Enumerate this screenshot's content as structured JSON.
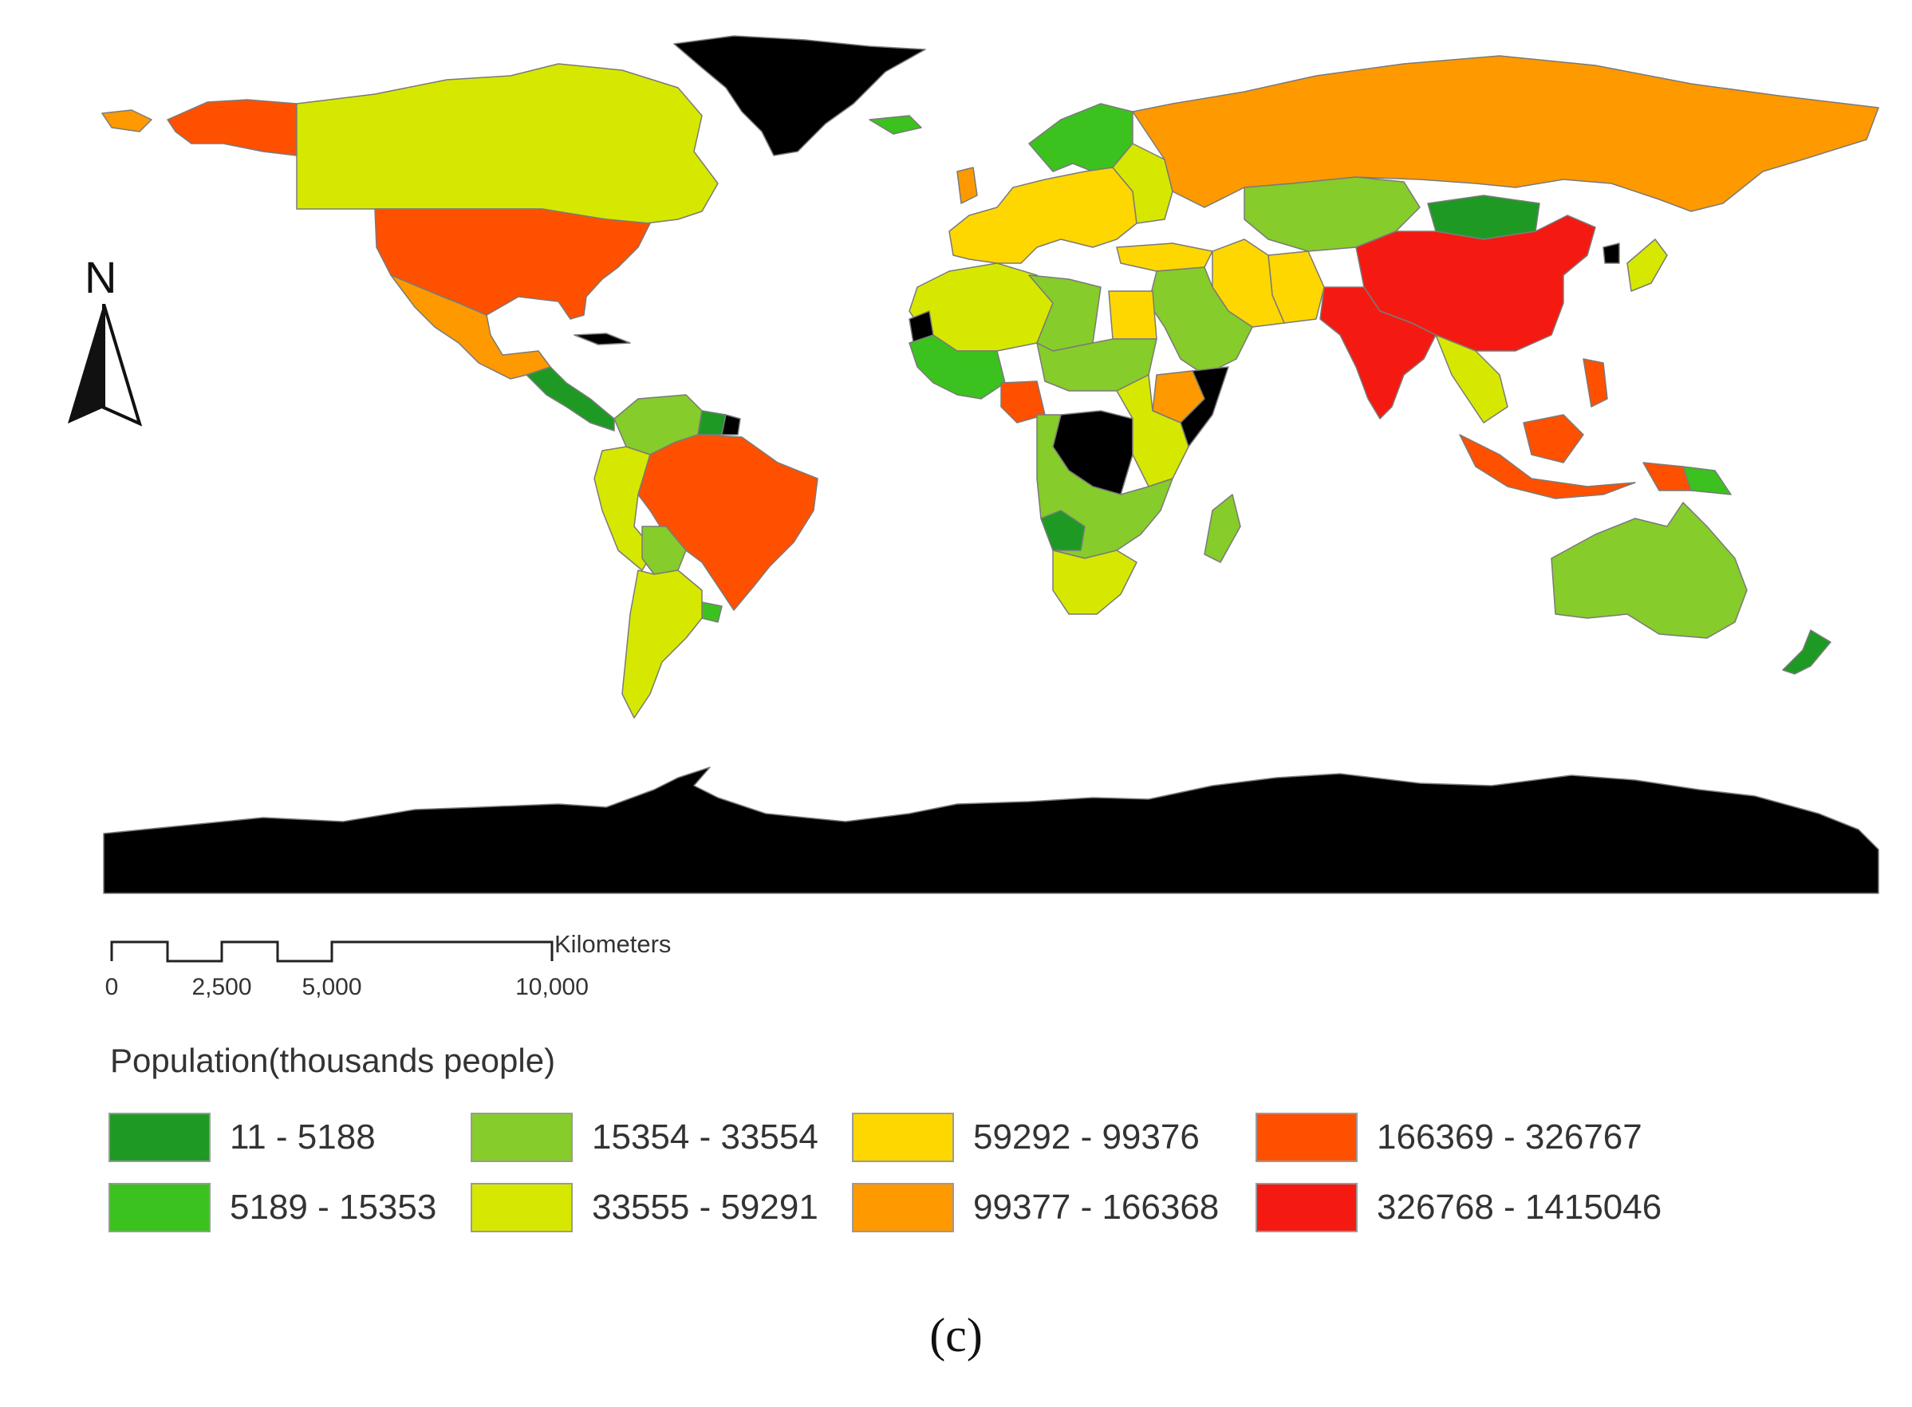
{
  "map": {
    "north_label": "N",
    "colors": {
      "ocean": "#ffffff",
      "no_data": "#000000",
      "class1": "#1e9a24",
      "class2": "#3bc21e",
      "class3": "#86cc2a",
      "class4": "#d6e800",
      "class5": "#ffd700",
      "class6": "#ff9900",
      "class7": "#ff5000",
      "class8": "#f41a12"
    }
  },
  "scale_bar": {
    "unit": "Kilometers",
    "ticks": [
      "0",
      "2,500",
      "5,000",
      "10,000"
    ]
  },
  "legend": {
    "title": "Population(thousands people)",
    "items": [
      {
        "label": "11 - 5188",
        "color": "#1e9a24"
      },
      {
        "label": "5189 - 15353",
        "color": "#3bc21e"
      },
      {
        "label": "15354 - 33554",
        "color": "#86cc2a"
      },
      {
        "label": "33555 - 59291",
        "color": "#d6e800"
      },
      {
        "label": "59292 - 99376",
        "color": "#ffd700"
      },
      {
        "label": "99377 - 166368",
        "color": "#ff9900"
      },
      {
        "label": "166369 - 326767",
        "color": "#ff5000"
      },
      {
        "label": "326768 - 1415046",
        "color": "#f41a12"
      }
    ]
  },
  "caption": "(c)"
}
